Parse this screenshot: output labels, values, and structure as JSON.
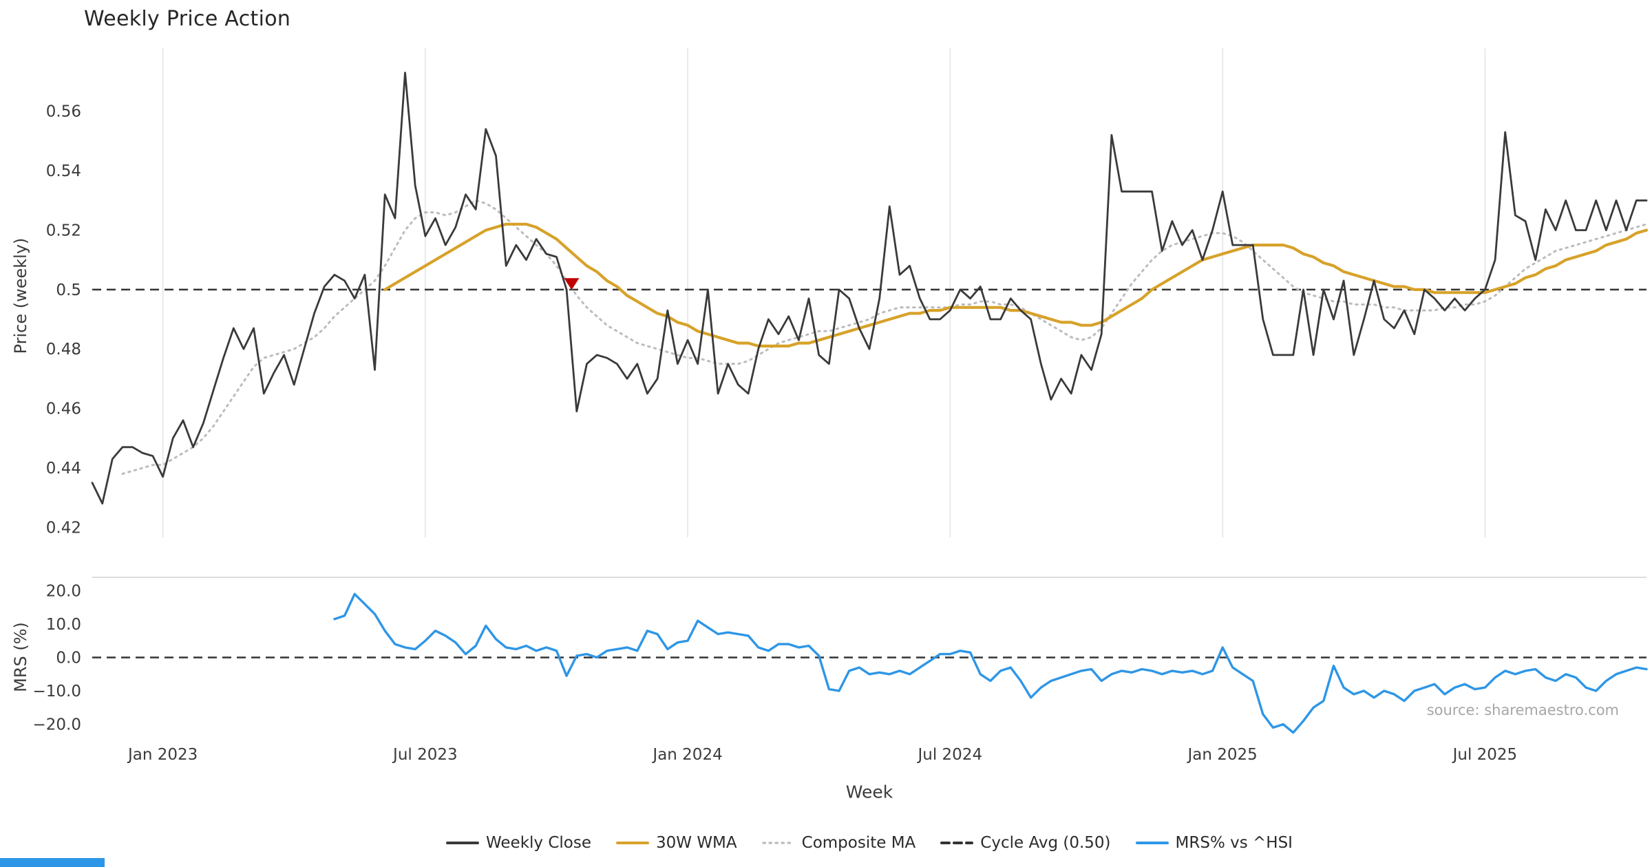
{
  "source_note": "source: sharemaestro.com",
  "colors": {
    "close": "#3a3a3a",
    "wma": "#d7a22a",
    "composite": "#bcbcbc",
    "cycle": "#333333",
    "mrs": "#2e96e6",
    "grid": "#e9e9e9",
    "panel_border": "#dcdcdc",
    "marker": "#c00000",
    "accent_bar": "#2e96e6"
  },
  "chart_data": {
    "type": "line",
    "title": "Weekly Price Action",
    "xlabel": "Week",
    "weeks_total": 155,
    "x_tick_weeks": [
      7,
      33,
      59,
      85,
      112,
      138
    ],
    "x_tick_labels": [
      "Jan 2023",
      "Jul 2023",
      "Jan 2024",
      "Jul 2024",
      "Jan 2025",
      "Jul 2025"
    ],
    "grid": "vertical",
    "legend_position": "bottom-center",
    "panels": [
      {
        "name": "price",
        "ylabel": "Price (weekly)",
        "ylim": [
          0.418,
          0.578
        ],
        "y_ticks": [
          0.56,
          0.54,
          0.52,
          0.5,
          0.48,
          0.46,
          0.44,
          0.42
        ],
        "y_tick_labels": [
          "0.56",
          "0.54",
          "0.52",
          "0.5",
          "0.48",
          "0.46",
          "0.44",
          "0.42"
        ],
        "reference_line": {
          "label": "Cycle Avg (0.50)",
          "value": 0.5,
          "style": "dashed",
          "color": "#333333"
        },
        "marker": {
          "type": "triangle-down",
          "color": "#c00000",
          "week": 47.5,
          "value": 0.502
        },
        "series": [
          {
            "name": "Weekly Close",
            "color": "#3a3a3a",
            "style": "solid",
            "width": 2.8,
            "start_week": 0,
            "values": [
              0.435,
              0.428,
              0.443,
              0.447,
              0.447,
              0.445,
              0.444,
              0.437,
              0.45,
              0.456,
              0.447,
              0.455,
              0.466,
              0.477,
              0.487,
              0.48,
              0.487,
              0.465,
              0.472,
              0.478,
              0.468,
              0.48,
              0.492,
              0.501,
              0.505,
              0.503,
              0.497,
              0.505,
              0.473,
              0.532,
              0.524,
              0.573,
              0.535,
              0.518,
              0.524,
              0.515,
              0.521,
              0.532,
              0.527,
              0.554,
              0.545,
              0.508,
              0.515,
              0.51,
              0.517,
              0.512,
              0.511,
              0.5,
              0.459,
              0.475,
              0.478,
              0.477,
              0.475,
              0.47,
              0.475,
              0.465,
              0.47,
              0.493,
              0.475,
              0.483,
              0.475,
              0.5,
              0.465,
              0.475,
              0.468,
              0.465,
              0.48,
              0.49,
              0.485,
              0.491,
              0.483,
              0.497,
              0.478,
              0.475,
              0.5,
              0.497,
              0.487,
              0.48,
              0.497,
              0.528,
              0.505,
              0.508,
              0.497,
              0.49,
              0.49,
              0.493,
              0.5,
              0.497,
              0.501,
              0.49,
              0.49,
              0.497,
              0.493,
              0.49,
              0.475,
              0.463,
              0.47,
              0.465,
              0.478,
              0.473,
              0.485,
              0.552,
              0.533,
              0.533,
              0.533,
              0.533,
              0.513,
              0.523,
              0.515,
              0.52,
              0.51,
              0.52,
              0.533,
              0.515,
              0.515,
              0.515,
              0.49,
              0.478,
              0.478,
              0.478,
              0.5,
              0.478,
              0.5,
              0.49,
              0.503,
              0.478,
              0.49,
              0.503,
              0.49,
              0.487,
              0.493,
              0.485,
              0.5,
              0.497,
              0.493,
              0.497,
              0.493,
              0.497,
              0.5,
              0.51,
              0.553,
              0.525,
              0.523,
              0.51,
              0.527,
              0.52,
              0.53,
              0.52,
              0.52,
              0.53,
              0.52,
              0.53,
              0.52,
              0.53,
              0.53
            ]
          },
          {
            "name": "30W WMA",
            "color": "#d7a22a",
            "style": "solid",
            "width": 4.2,
            "start_week": 29,
            "values": [
              0.5,
              0.502,
              0.504,
              0.506,
              0.508,
              0.51,
              0.512,
              0.514,
              0.516,
              0.518,
              0.52,
              0.521,
              0.522,
              0.522,
              0.522,
              0.521,
              0.519,
              0.517,
              0.514,
              0.511,
              0.508,
              0.506,
              0.503,
              0.501,
              0.498,
              0.496,
              0.494,
              0.492,
              0.491,
              0.489,
              0.488,
              0.486,
              0.485,
              0.484,
              0.483,
              0.482,
              0.482,
              0.481,
              0.481,
              0.481,
              0.481,
              0.482,
              0.482,
              0.483,
              0.484,
              0.485,
              0.486,
              0.487,
              0.488,
              0.489,
              0.49,
              0.491,
              0.492,
              0.492,
              0.493,
              0.493,
              0.494,
              0.494,
              0.494,
              0.494,
              0.494,
              0.494,
              0.493,
              0.493,
              0.492,
              0.491,
              0.49,
              0.489,
              0.489,
              0.488,
              0.488,
              0.489,
              0.491,
              0.493,
              0.495,
              0.497,
              0.5,
              0.502,
              0.504,
              0.506,
              0.508,
              0.51,
              0.511,
              0.512,
              0.513,
              0.514,
              0.515,
              0.515,
              0.515,
              0.515,
              0.514,
              0.512,
              0.511,
              0.509,
              0.508,
              0.506,
              0.505,
              0.504,
              0.503,
              0.502,
              0.501,
              0.501,
              0.5,
              0.5,
              0.499,
              0.499,
              0.499,
              0.499,
              0.499,
              0.499,
              0.5,
              0.501,
              0.502,
              0.504,
              0.505,
              0.507,
              0.508,
              0.51,
              0.511,
              0.512,
              0.513,
              0.515,
              0.516,
              0.517,
              0.519,
              0.52
            ]
          },
          {
            "name": "Composite MA",
            "color": "#bcbcbc",
            "style": "dotted",
            "width": 3.0,
            "start_week": 3,
            "values": [
              0.438,
              0.439,
              0.44,
              0.441,
              0.441,
              0.443,
              0.445,
              0.447,
              0.45,
              0.454,
              0.459,
              0.464,
              0.469,
              0.474,
              0.477,
              0.478,
              0.479,
              0.48,
              0.482,
              0.484,
              0.487,
              0.491,
              0.494,
              0.497,
              0.5,
              0.503,
              0.508,
              0.514,
              0.52,
              0.524,
              0.526,
              0.526,
              0.525,
              0.526,
              0.528,
              0.53,
              0.529,
              0.527,
              0.524,
              0.521,
              0.518,
              0.515,
              0.512,
              0.508,
              0.503,
              0.498,
              0.494,
              0.491,
              0.488,
              0.486,
              0.484,
              0.482,
              0.481,
              0.48,
              0.479,
              0.478,
              0.477,
              0.477,
              0.476,
              0.475,
              0.475,
              0.475,
              0.476,
              0.478,
              0.48,
              0.482,
              0.483,
              0.484,
              0.485,
              0.486,
              0.486,
              0.487,
              0.488,
              0.489,
              0.49,
              0.492,
              0.493,
              0.494,
              0.494,
              0.494,
              0.494,
              0.494,
              0.494,
              0.495,
              0.495,
              0.496,
              0.496,
              0.495,
              0.495,
              0.494,
              0.492,
              0.49,
              0.488,
              0.486,
              0.484,
              0.483,
              0.484,
              0.487,
              0.492,
              0.497,
              0.502,
              0.506,
              0.51,
              0.513,
              0.515,
              0.516,
              0.517,
              0.518,
              0.519,
              0.519,
              0.518,
              0.516,
              0.513,
              0.51,
              0.507,
              0.504,
              0.501,
              0.499,
              0.498,
              0.497,
              0.496,
              0.496,
              0.495,
              0.495,
              0.495,
              0.494,
              0.494,
              0.493,
              0.493,
              0.493,
              0.493,
              0.494,
              0.494,
              0.495,
              0.495,
              0.496,
              0.498,
              0.501,
              0.504,
              0.507,
              0.509,
              0.511,
              0.513,
              0.514,
              0.515,
              0.516,
              0.517,
              0.518,
              0.519,
              0.52,
              0.521,
              0.522
            ]
          }
        ]
      },
      {
        "name": "mrs",
        "ylabel": "MRS (%)",
        "ylim": [
          -24,
          24
        ],
        "y_ticks": [
          20,
          10,
          0,
          -10,
          -20
        ],
        "y_tick_labels": [
          "20.0",
          "10.0",
          "0.0",
          "−10.0",
          "−20.0"
        ],
        "reference_line": {
          "label": "zero",
          "value": 0,
          "style": "dashed",
          "color": "#333333"
        },
        "series": [
          {
            "name": "MRS% vs ^HSI",
            "color": "#2e96e6",
            "style": "solid",
            "width": 3.4,
            "start_week": 24,
            "values": [
              11.5,
              12.5,
              19.0,
              16.0,
              13.0,
              8.0,
              4.0,
              3.0,
              2.5,
              5.0,
              8.0,
              6.5,
              4.5,
              1.0,
              3.5,
              9.5,
              5.5,
              3.0,
              2.5,
              3.5,
              2.0,
              3.0,
              2.0,
              -5.5,
              0.5,
              1.0,
              0.0,
              2.0,
              2.5,
              3.0,
              2.0,
              8.0,
              7.0,
              2.5,
              4.5,
              5.0,
              11.0,
              9.0,
              7.0,
              7.5,
              7.0,
              6.5,
              3.0,
              2.0,
              4.0,
              4.0,
              3.0,
              3.5,
              0.5,
              -9.5,
              -10.0,
              -4.0,
              -3.0,
              -5.0,
              -4.5,
              -5.0,
              -4.0,
              -5.0,
              -3.0,
              -1.0,
              1.0,
              1.0,
              2.0,
              1.5,
              -5.0,
              -7.0,
              -4.0,
              -3.0,
              -7.0,
              -12.0,
              -9.0,
              -7.0,
              -6.0,
              -5.0,
              -4.0,
              -3.5,
              -7.0,
              -5.0,
              -4.0,
              -4.5,
              -3.5,
              -4.0,
              -5.0,
              -4.0,
              -4.5,
              -4.0,
              -5.0,
              -4.0,
              3.0,
              -3.0,
              -5.0,
              -7.0,
              -17.0,
              -21.0,
              -20.0,
              -22.5,
              -19.0,
              -15.0,
              -13.0,
              -2.5,
              -9.0,
              -11.0,
              -10.0,
              -12.0,
              -10.0,
              -11.0,
              -13.0,
              -10.0,
              -9.0,
              -8.0,
              -11.0,
              -9.0,
              -8.0,
              -9.5,
              -9.0,
              -6.0,
              -4.0,
              -5.0,
              -4.0,
              -3.5,
              -6.0,
              -7.0,
              -5.0,
              -6.0,
              -9.0,
              -10.0,
              -7.0,
              -5.0,
              -4.0,
              -3.0,
              -3.5
            ]
          }
        ]
      }
    ],
    "legend": [
      {
        "label": "Weekly Close",
        "color": "#3a3a3a",
        "style": "solid"
      },
      {
        "label": "30W WMA",
        "color": "#d7a22a",
        "style": "solid"
      },
      {
        "label": "Composite MA",
        "color": "#bcbcbc",
        "style": "dotted"
      },
      {
        "label": "Cycle Avg (0.50)",
        "color": "#333333",
        "style": "dashed"
      },
      {
        "label": "MRS% vs ^HSI",
        "color": "#2e96e6",
        "style": "solid"
      }
    ]
  }
}
